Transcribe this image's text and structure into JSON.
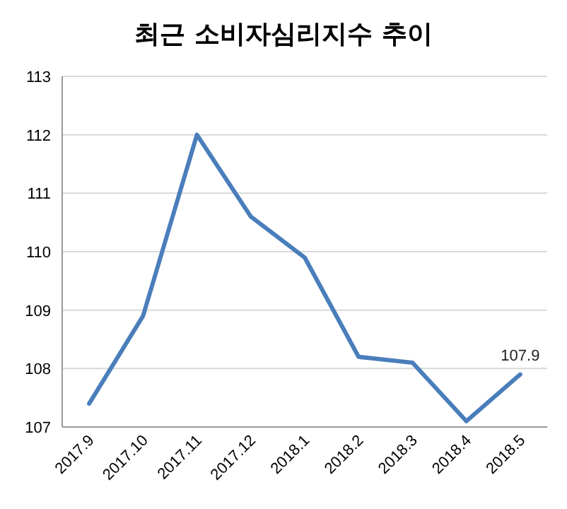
{
  "chart_data": {
    "type": "line",
    "title": "최근 소비자심리지수 추이",
    "categories": [
      "2017.9",
      "2017.10",
      "2017.11",
      "2017.12",
      "2018.1",
      "2018.2",
      "2018.3",
      "2018.4",
      "2018.5"
    ],
    "series": [
      {
        "color": "#4a7ebb",
        "values": [
          107.4,
          108.9,
          112.0,
          110.6,
          109.9,
          108.2,
          108.1,
          107.1,
          107.9
        ],
        "value_labels": [
          null,
          null,
          null,
          null,
          null,
          null,
          null,
          null,
          "107.9"
        ]
      }
    ],
    "ylim": [
      107,
      113
    ],
    "yticks": [
      107,
      108,
      109,
      110,
      111,
      112,
      113
    ],
    "grid": "y",
    "marker": "none",
    "line_style": "solid"
  }
}
